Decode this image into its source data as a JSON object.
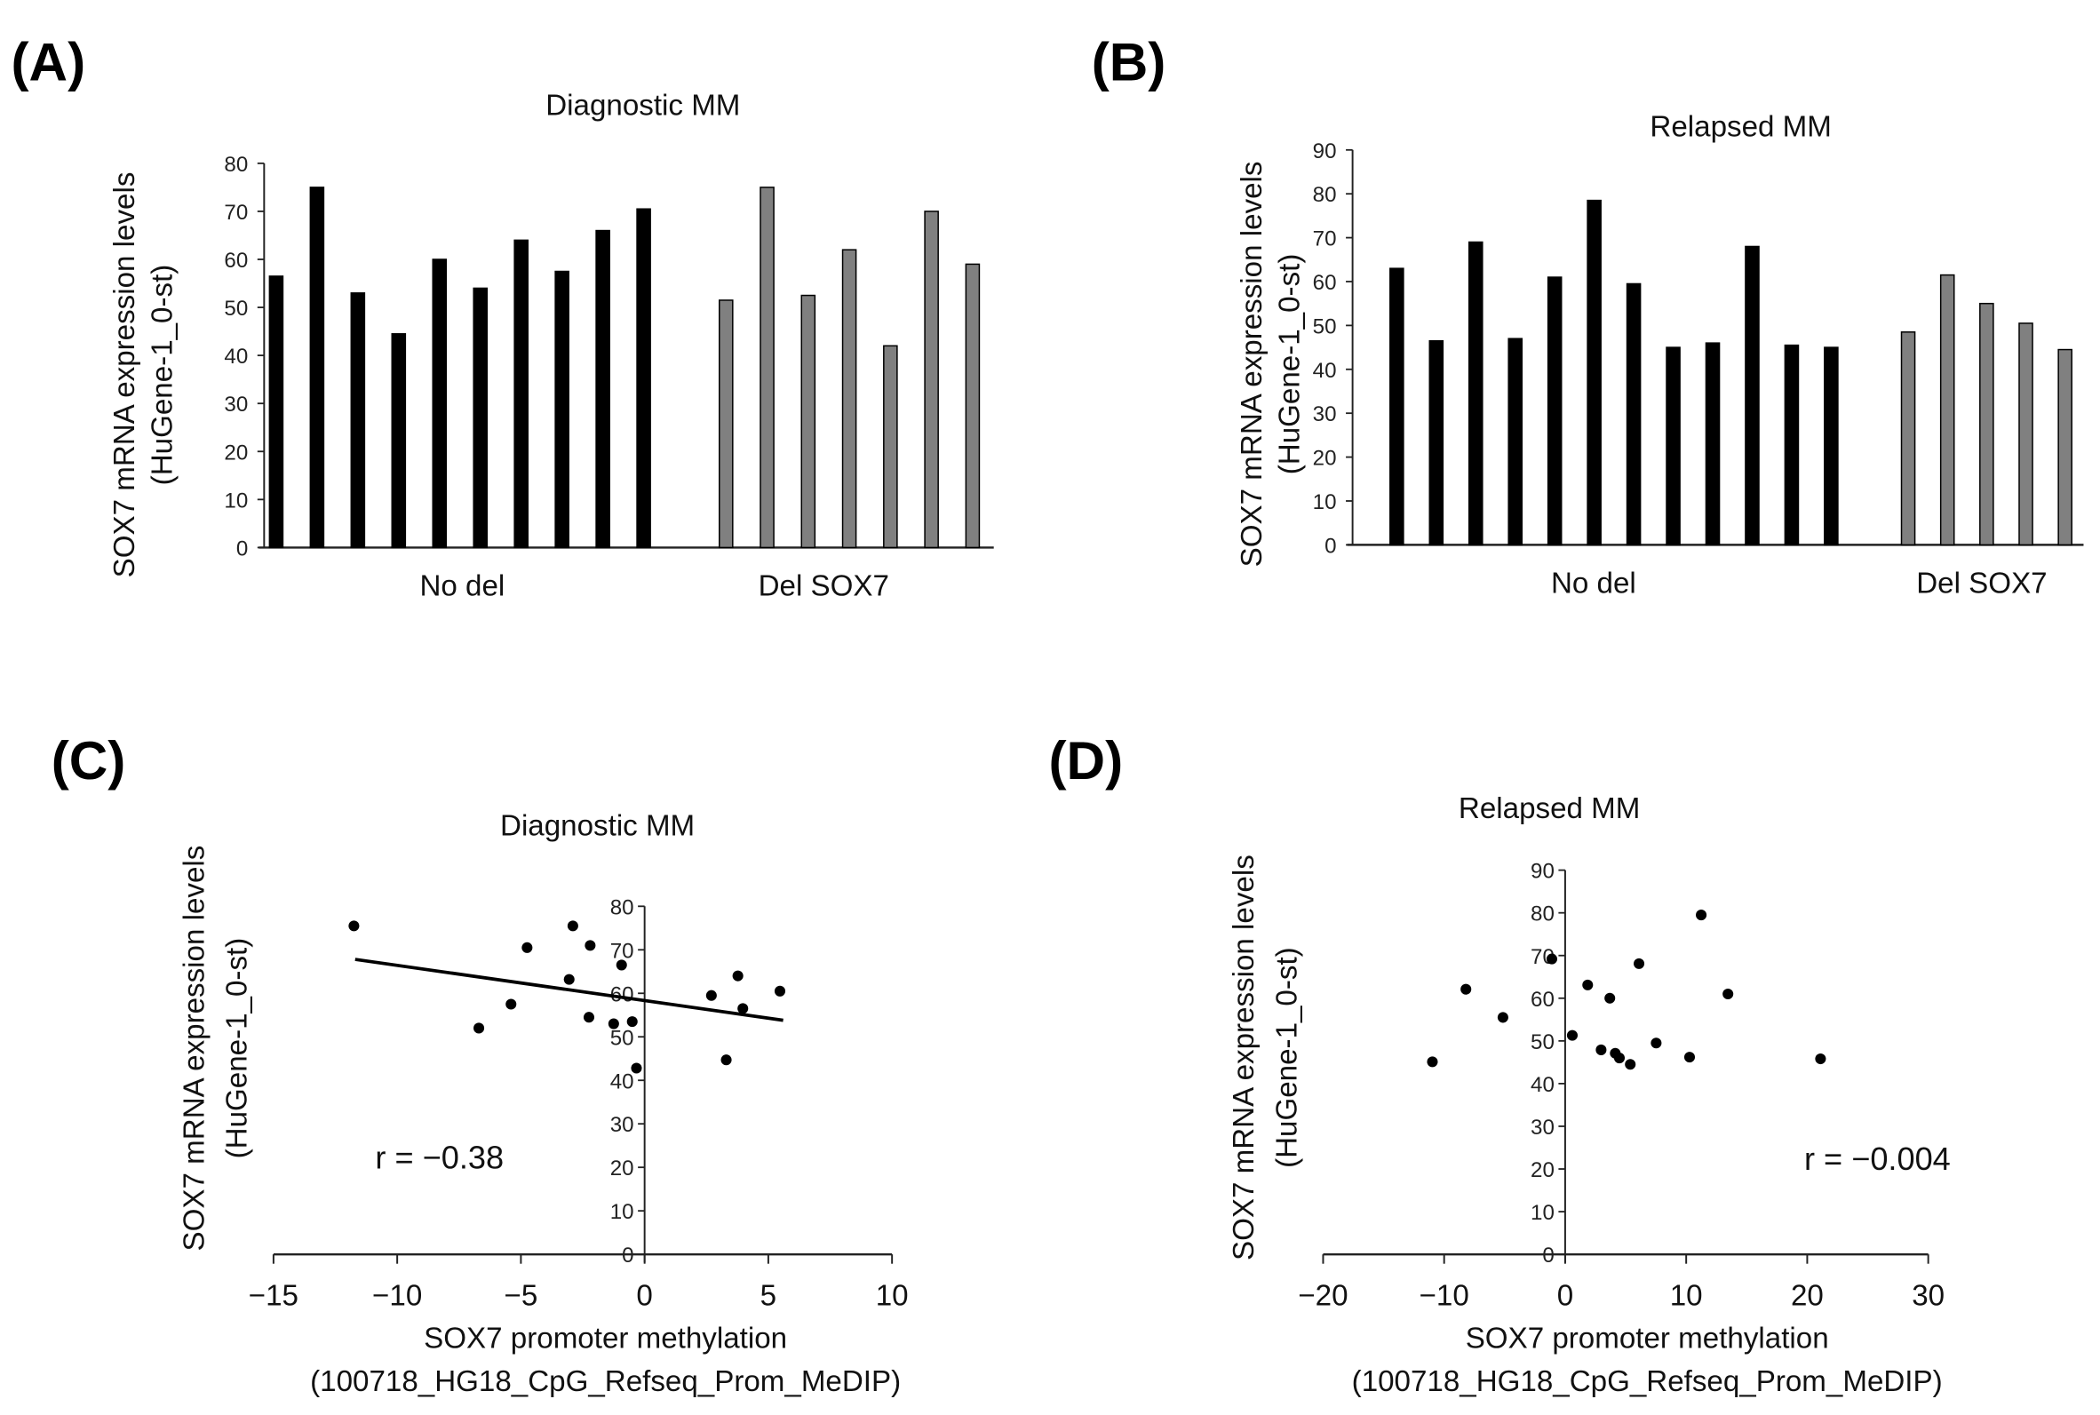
{
  "panel_labels": [
    "(A)",
    "(B)",
    "(C)",
    "(D)"
  ],
  "colors": {
    "no_del": "#000000",
    "del": "#808080",
    "axis": "#222222"
  },
  "chart_data": [
    {
      "type": "bar",
      "title": "Diagnostic MM",
      "ylabel": [
        "SOX7 mRNA expression levels",
        "(HuGene-1_0-st)"
      ],
      "ylim": [
        0,
        80
      ],
      "yticks": [
        "0",
        "10",
        "20",
        "30",
        "40",
        "50",
        "60",
        "70",
        "80"
      ],
      "groups": [
        {
          "name": "No del",
          "values": [
            56.5,
            75,
            53,
            44.5,
            60,
            54,
            64,
            57.5,
            66,
            70.5
          ]
        },
        {
          "name": "Del SOX7",
          "values": [
            51.5,
            75,
            52.5,
            62,
            42,
            70,
            59
          ]
        }
      ]
    },
    {
      "type": "bar",
      "title": "Relapsed MM",
      "ylabel": [
        "SOX7 mRNA expression levels",
        "(HuGene-1_0-st)"
      ],
      "ylim": [
        0,
        90
      ],
      "yticks": [
        "0",
        "10",
        "20",
        "30",
        "40",
        "50",
        "60",
        "70",
        "80",
        "90"
      ],
      "groups": [
        {
          "name": "No del",
          "values": [
            63,
            46.5,
            69,
            47,
            61,
            78.5,
            59.5,
            45,
            46,
            68,
            45.5,
            45
          ]
        },
        {
          "name": "Del SOX7",
          "values": [
            48.5,
            61.5,
            55,
            50.5,
            44.5
          ]
        }
      ]
    },
    {
      "type": "scatter",
      "title": "Diagnostic MM",
      "xlabel": [
        "SOX7 promoter methylation",
        "(100718_HG18_CpG_Refseq_Prom_MeDIP)"
      ],
      "ylabel": [
        "SOX7 mRNA expression levels",
        "(HuGene-1_0-st)"
      ],
      "xlim": [
        -15,
        10
      ],
      "ylim": [
        0,
        80
      ],
      "xticks": [
        "−15",
        "−10",
        "−5",
        "0",
        "5",
        "10"
      ],
      "yticks": [
        "0",
        "10",
        "20",
        "30",
        "40",
        "50",
        "60",
        "70",
        "80"
      ],
      "annotation": "r = −0.38",
      "trendline": {
        "x": [
          -11.7,
          5.6
        ],
        "y": [
          67.8,
          53.8
        ]
      },
      "points": [
        [
          -11.75,
          75.5
        ],
        [
          -2.9,
          75.5
        ],
        [
          -4.75,
          70.5
        ],
        [
          -2.2,
          71
        ],
        [
          -0.93,
          66.5
        ],
        [
          -3.05,
          63.2
        ],
        [
          -5.4,
          57.5
        ],
        [
          -6.7,
          52
        ],
        [
          -2.25,
          54.5
        ],
        [
          -1.25,
          53
        ],
        [
          -0.5,
          53.5
        ],
        [
          -0.33,
          42.8
        ],
        [
          2.7,
          59.5
        ],
        [
          3.77,
          64
        ],
        [
          3.97,
          56.5
        ],
        [
          5.47,
          60.5
        ],
        [
          3.3,
          44.7
        ]
      ]
    },
    {
      "type": "scatter",
      "title": "Relapsed MM",
      "xlabel": [
        "SOX7 promoter methylation",
        "(100718_HG18_CpG_Refseq_Prom_MeDIP)"
      ],
      "ylabel": [
        "SOX7 mRNA expression levels",
        "(HuGene-1_0-st)"
      ],
      "xlim": [
        -20,
        30
      ],
      "ylim": [
        0,
        90
      ],
      "xticks": [
        "−20",
        "−10",
        "0",
        "10",
        "20",
        "30"
      ],
      "yticks": [
        "0",
        "10",
        "20",
        "30",
        "40",
        "50",
        "60",
        "70",
        "80",
        "90"
      ],
      "annotation": "r = −0.004",
      "points": [
        [
          -10.97,
          45.1
        ],
        [
          -8.2,
          62.1
        ],
        [
          -5.14,
          55.5
        ],
        [
          -1.1,
          69.2
        ],
        [
          0.59,
          51.3
        ],
        [
          1.86,
          63.1
        ],
        [
          3.69,
          60
        ],
        [
          2.97,
          47.9
        ],
        [
          4.14,
          47.1
        ],
        [
          4.48,
          46
        ],
        [
          5.38,
          44.5
        ],
        [
          6.1,
          68.1
        ],
        [
          7.52,
          49.5
        ],
        [
          10.28,
          46.2
        ],
        [
          11.24,
          79.5
        ],
        [
          13.45,
          61
        ],
        [
          21.1,
          45.8
        ]
      ]
    }
  ]
}
